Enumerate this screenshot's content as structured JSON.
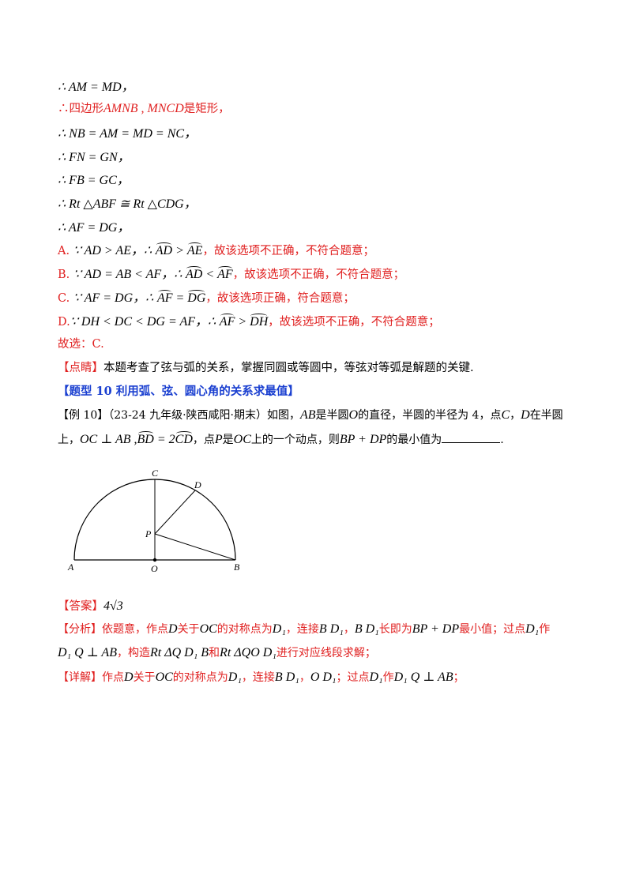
{
  "lines": {
    "l1": "∴ AM = MD，",
    "l2a": "∴四边形",
    "l2b": "AMNB , MNCD",
    "l2c": "是矩形，",
    "l3": "∴ NB = AM = MD = NC，",
    "l4": "∴ FN = GN，",
    "l5": "∴ FB = GC，",
    "l6": "∴ Rt △ABF ≅ Rt △CDG，",
    "l7": "∴  AF = DG，",
    "optA_label": "A.",
    "optA_math": "∵ AD > AE，∴",
    "optA_arc1": "AD",
    "optA_gt": " > ",
    "optA_arc2": "AE",
    "optA_text": "，故该选项不正确，不符合题意；",
    "optB_label": "B.",
    "optB_math": "∵ AD = AB < AF，∴",
    "optB_arc1": "AD",
    "optB_lt": " < ",
    "optB_arc2": "AF",
    "optB_text": "，故该选项不正确，不符合题意；",
    "optC_label": "C.",
    "optC_math": "∵  AF = DG，∴",
    "optC_arc1": "AF",
    "optC_eq": " = ",
    "optC_arc2": "DG",
    "optC_text": "，故该选项正确，符合题意；",
    "optD_label": "D.",
    "optD_math": "∵ DH < DC < DG = AF，∴",
    "optD_arc1": "AF",
    "optD_gt": " > ",
    "optD_arc2": "DH",
    "optD_text": "，故该选项不正确，不符合题意；",
    "choice": "故选：C.",
    "comment_tag": "【点睛】",
    "comment_text": "本题考查了弦与弧的关系，掌握同圆或等圆中，等弦对等弧是解题的关键."
  },
  "section": {
    "title": "【题型 10  利用弧、弦、圆心角的关系求最值】"
  },
  "example": {
    "line1_pre": "【例 10】（23-24 九年级·陕西咸阳·期末）如图，",
    "line1_ab": "AB",
    "line1_mid": "是半圆",
    "line1_o": "O",
    "line1_post": "的直径，半圆的半径为 4，点",
    "line1_c": "C",
    "line1_comma": "，",
    "line1_d": "D",
    "line1_end": "在半圆",
    "line2_pre": "上，",
    "line2_math": "OC ⊥ AB ,",
    "line2_arc1": "BD",
    "line2_eq": " = 2",
    "line2_arc2": "CD",
    "line2_mid": "，点",
    "line2_p": "P",
    "line2_is": "是",
    "line2_oc": "OC",
    "line2_mid2": "上的一个动点，则",
    "line2_expr": "BP + DP",
    "line2_end": "的最小值为",
    "line2_period": "."
  },
  "figure": {
    "labels": {
      "A": "A",
      "O": "O",
      "B": "B",
      "C": "C",
      "D": "D",
      "P": "P"
    }
  },
  "answer": {
    "tag": "【答案】",
    "value": "4√3"
  },
  "analysis": {
    "tag": "【分析】",
    "t1": "依题意，作点",
    "m1": "D",
    "t2": "关于",
    "m2": "OC",
    "t3": "的对称点为",
    "m3": "D₁",
    "t4": "，连接",
    "m4": "B D₁",
    "t5": "，",
    "m5": "B D₁",
    "t6": "长即为",
    "m6": "BP + DP",
    "t7": "最小值；过点",
    "m7": "D₁",
    "t8": "作",
    "l2m1": "D₁ Q ⊥ AB",
    "l2t1": "，构造",
    "l2m2": "Rt ΔQ D₁ B",
    "l2t2": "和",
    "l2m3": "Rt ΔQO D₁",
    "l2t3": "进行对应线段求解；"
  },
  "detail": {
    "tag": "【详解】",
    "t1": "作点",
    "m1": "D",
    "t2": "关于",
    "m2": "OC",
    "t3": "的对称点为",
    "m3": "D₁",
    "t4": "，连接",
    "m4": "B D₁",
    "t5": "，",
    "m5": "O D₁",
    "t6": "；过点",
    "m6": "D₁",
    "t7": "作",
    "m7": "D₁ Q ⊥ AB",
    "t8": "；"
  }
}
